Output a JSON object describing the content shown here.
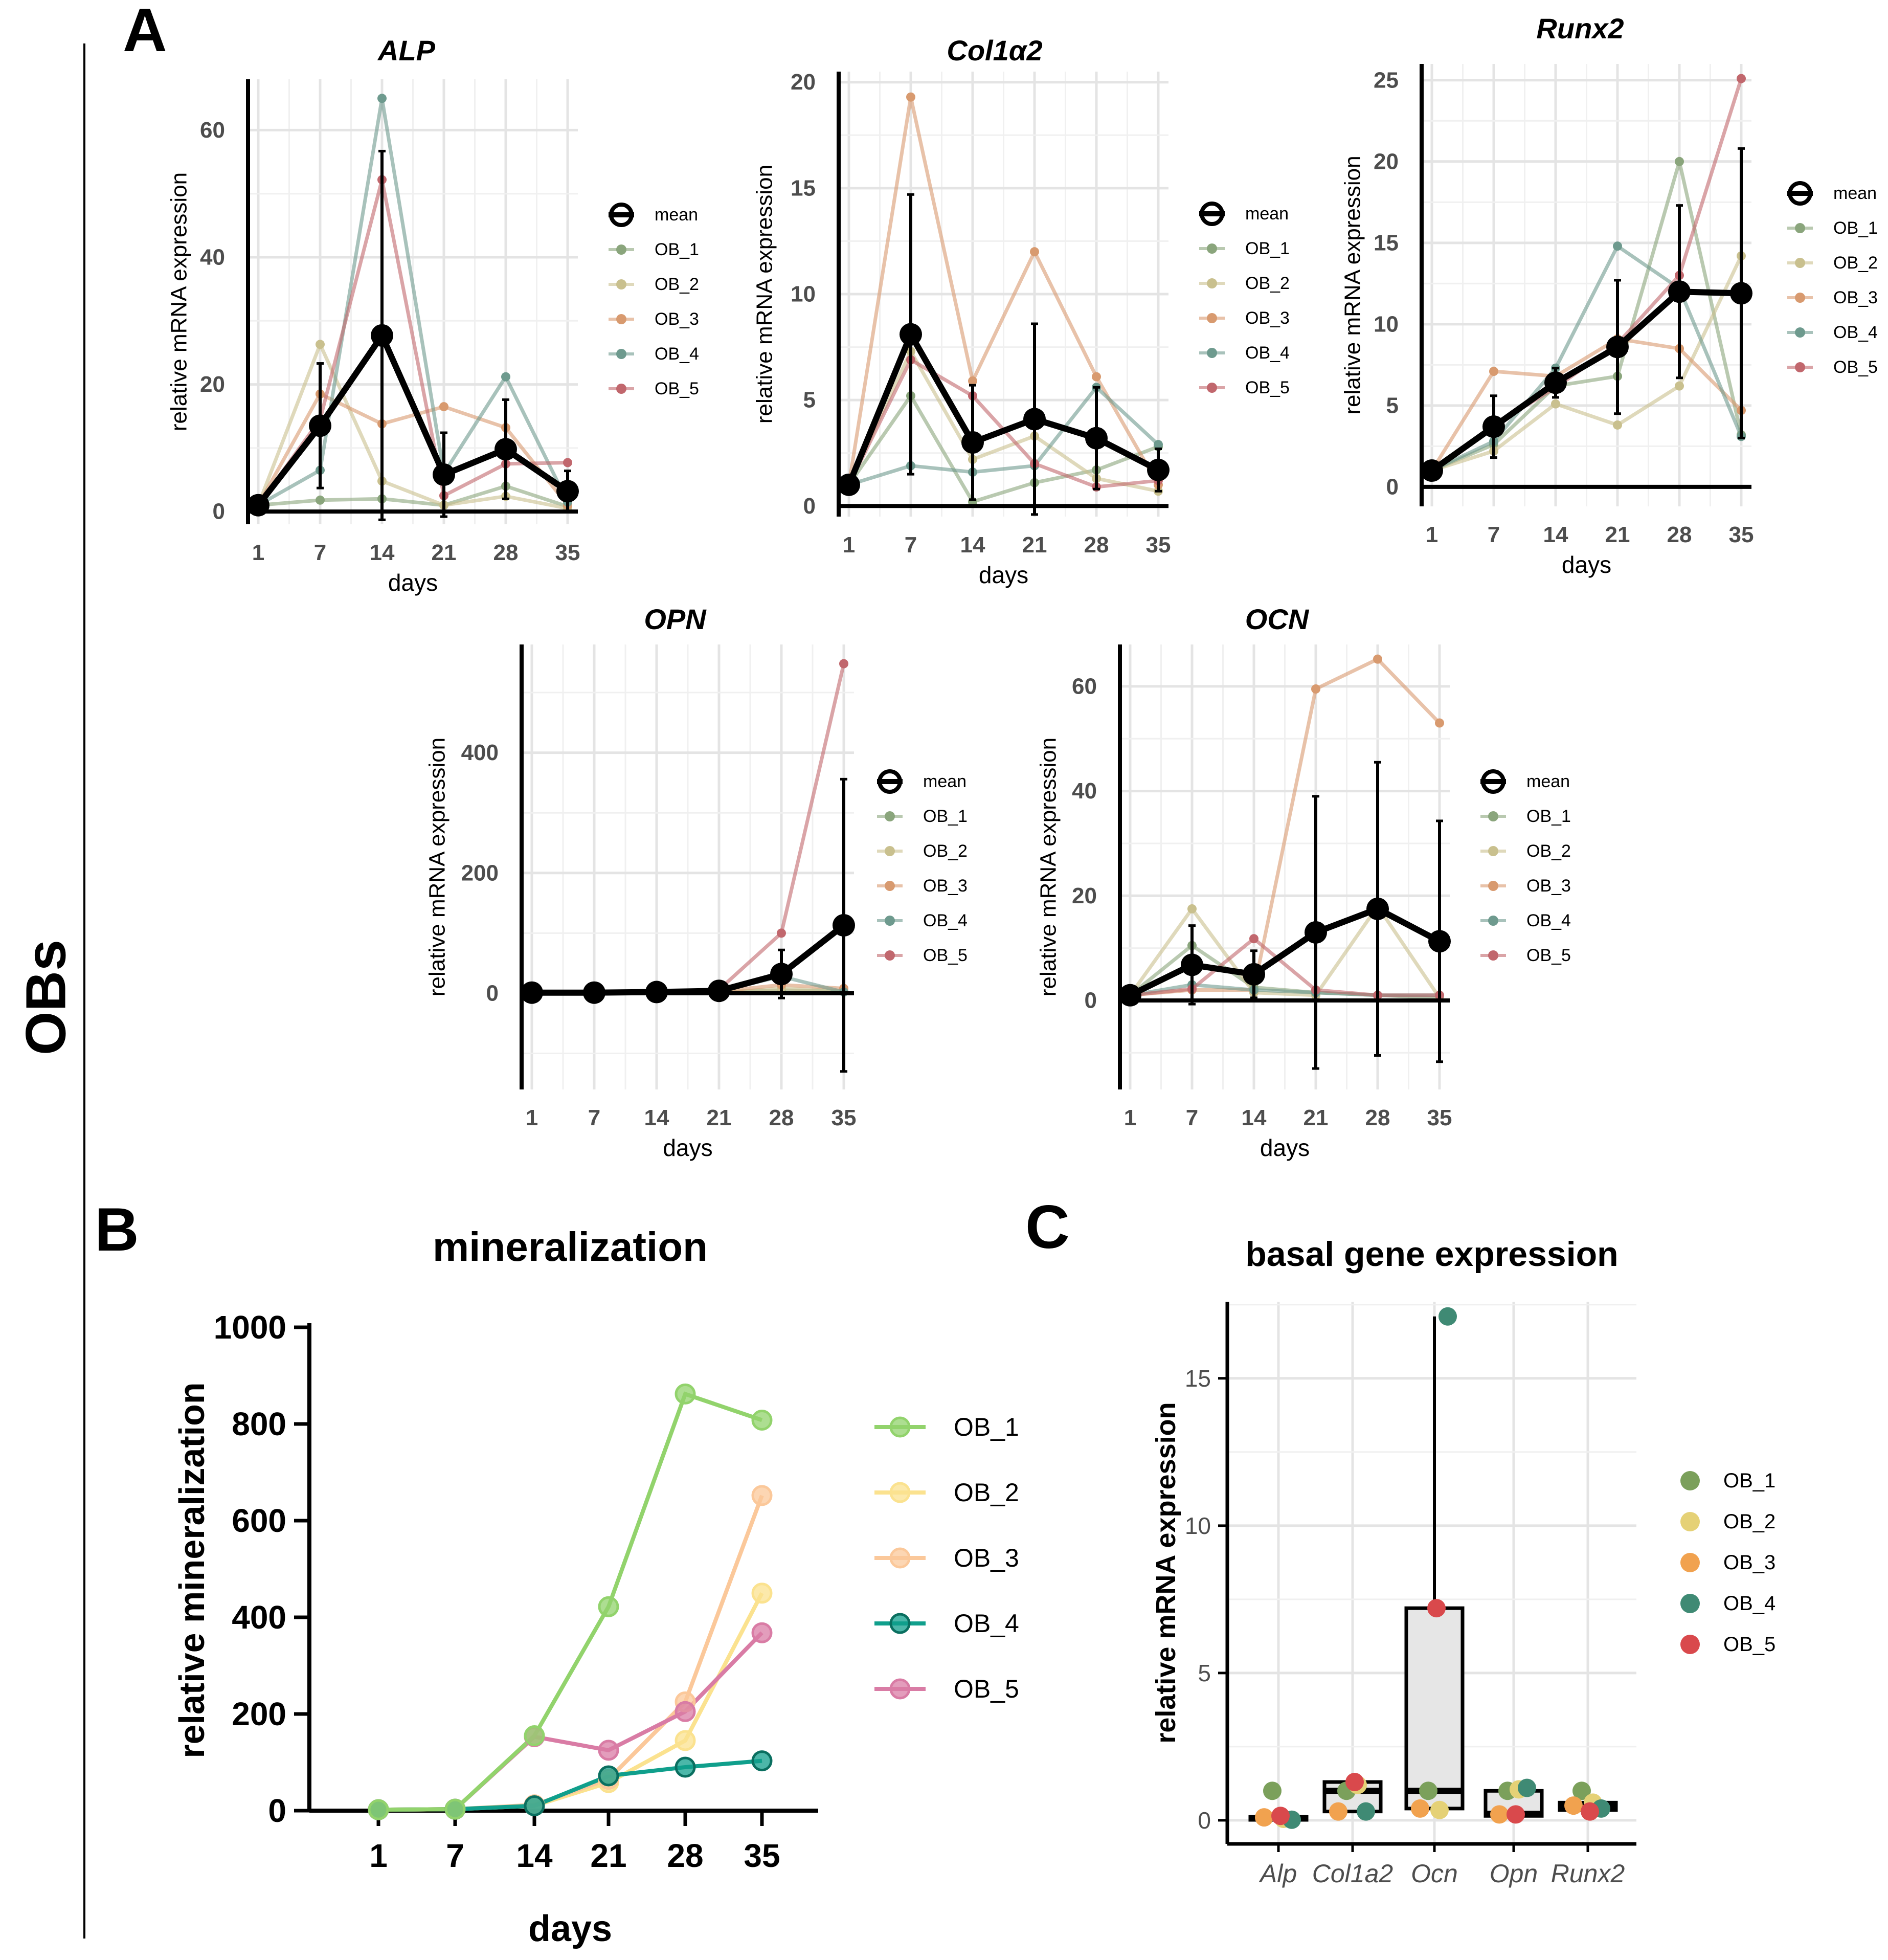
{
  "figure": {
    "side_label": "OBs",
    "panel_labels": {
      "A": "A",
      "B": "B",
      "C": "C"
    },
    "colors": {
      "OB_1": "#8aa57c",
      "OB_2": "#c9c08e",
      "OB_3": "#d89a6f",
      "OB_4": "#6e9a8e",
      "OB_5": "#c1676d",
      "mean": "#000000",
      "B_OB_1": "#92d36c",
      "B_OB_2": "#fbe28f",
      "B_OB_3": "#fbc89a",
      "B_OB_4": "#109f8c",
      "B_OB_5": "#d97ca5",
      "C_OB_1": "#7ba05b",
      "C_OB_2": "#e5d176",
      "C_OB_3": "#f1a24f",
      "C_OB_4": "#3f8a74",
      "C_OB_5": "#d9494c"
    }
  },
  "chart_data": [
    {
      "id": "alp",
      "type": "line",
      "title": "ALP",
      "xlabel": "days",
      "ylabel": "relative mRNA expression",
      "categories": [
        "1",
        "7",
        "14",
        "21",
        "28",
        "35"
      ],
      "ylim": [
        -2,
        68
      ],
      "yticks": [
        0,
        20,
        40,
        60
      ],
      "legend": [
        "mean",
        "OB_1",
        "OB_2",
        "OB_3",
        "OB_4",
        "OB_5"
      ],
      "series": [
        {
          "name": "OB_1",
          "values": [
            1,
            1.8,
            2,
            1,
            4,
            0.8
          ]
        },
        {
          "name": "OB_2",
          "values": [
            1,
            26.3,
            4.8,
            1,
            2.4,
            0.5
          ]
        },
        {
          "name": "OB_3",
          "values": [
            1,
            18.5,
            13.8,
            16.5,
            13.2,
            1
          ]
        },
        {
          "name": "OB_4",
          "values": [
            1,
            6.5,
            65,
            6,
            21.2,
            1.5
          ]
        },
        {
          "name": "OB_5",
          "values": [
            1,
            14.5,
            52.2,
            2.5,
            7.5,
            7.7
          ]
        },
        {
          "name": "mean",
          "values": [
            1,
            13.5,
            27.7,
            5.8,
            9.8,
            3.2
          ],
          "err": [
            0,
            9.8,
            29,
            6.6,
            7.8,
            3.2
          ]
        }
      ]
    },
    {
      "id": "col",
      "type": "line",
      "title": "Col1α2",
      "xlabel": "days",
      "ylabel": "relative mRNA expression",
      "categories": [
        "1",
        "7",
        "14",
        "21",
        "28",
        "35"
      ],
      "ylim": [
        -0.5,
        20.5
      ],
      "yticks": [
        0,
        5,
        10,
        15,
        20
      ],
      "legend": [
        "mean",
        "OB_1",
        "OB_2",
        "OB_3",
        "OB_4",
        "OB_5"
      ],
      "series": [
        {
          "name": "OB_1",
          "values": [
            1,
            5.2,
            0.2,
            1.1,
            1.7,
            2.8
          ]
        },
        {
          "name": "OB_2",
          "values": [
            1,
            7.3,
            2.2,
            3.3,
            1.3,
            0.7
          ]
        },
        {
          "name": "OB_3",
          "values": [
            1,
            19.3,
            5.9,
            12,
            6.1,
            1
          ]
        },
        {
          "name": "OB_4",
          "values": [
            1,
            1.9,
            1.6,
            1.9,
            5.6,
            2.9
          ]
        },
        {
          "name": "OB_5",
          "values": [
            1,
            6.9,
            5.2,
            2,
            0.9,
            1.2
          ]
        },
        {
          "name": "mean",
          "values": [
            1,
            8.1,
            3,
            4.1,
            3.2,
            1.7
          ],
          "err": [
            0,
            6.6,
            2.7,
            4.5,
            2.4,
            1
          ]
        }
      ]
    },
    {
      "id": "runx",
      "type": "line",
      "title": "Runx2",
      "xlabel": "days",
      "ylabel": "relative mRNA expression",
      "categories": [
        "1",
        "7",
        "14",
        "21",
        "28",
        "35"
      ],
      "ylim": [
        -1.2,
        26
      ],
      "yticks": [
        0,
        5,
        10,
        15,
        20,
        25
      ],
      "legend": [
        "mean",
        "OB_1",
        "OB_2",
        "OB_3",
        "OB_4",
        "OB_5"
      ],
      "series": [
        {
          "name": "OB_1",
          "values": [
            1,
            2.6,
            6.2,
            6.8,
            20,
            3.2
          ]
        },
        {
          "name": "OB_2",
          "values": [
            1,
            2.2,
            5.1,
            3.8,
            6.2,
            14.2
          ]
        },
        {
          "name": "OB_3",
          "values": [
            1,
            7.1,
            6.8,
            9.1,
            8.5,
            4.7
          ]
        },
        {
          "name": "OB_4",
          "values": [
            1,
            2.8,
            7.3,
            14.8,
            12.2,
            3.1
          ]
        },
        {
          "name": "OB_5",
          "values": [
            1,
            3.8,
            6.1,
            8.8,
            13,
            25.1
          ]
        },
        {
          "name": "mean",
          "values": [
            1,
            3.7,
            6.4,
            8.6,
            12,
            11.9
          ],
          "err": [
            0,
            1.9,
            0.9,
            4.1,
            5.3,
            8.9
          ]
        }
      ]
    },
    {
      "id": "opn",
      "type": "line",
      "title": "OPN",
      "xlabel": "days",
      "ylabel": "relative mRNA expression",
      "categories": [
        "1",
        "7",
        "14",
        "21",
        "28",
        "35"
      ],
      "ylim": [
        -160,
        580
      ],
      "yticks": [
        0,
        200,
        400
      ],
      "legend": [
        "mean",
        "OB_1",
        "OB_2",
        "OB_3",
        "OB_4",
        "OB_5"
      ],
      "series": [
        {
          "name": "OB_1",
          "values": [
            1,
            1,
            1,
            2,
            5,
            3
          ]
        },
        {
          "name": "OB_2",
          "values": [
            1,
            1,
            1,
            1,
            8,
            4
          ]
        },
        {
          "name": "OB_3",
          "values": [
            1,
            1,
            2,
            3,
            14,
            8
          ]
        },
        {
          "name": "OB_4",
          "values": [
            1,
            1,
            2,
            4,
            28,
            2
          ]
        },
        {
          "name": "OB_5",
          "values": [
            1,
            1,
            3,
            6,
            100,
            548
          ]
        },
        {
          "name": "mean",
          "values": [
            1,
            1,
            2,
            4,
            32,
            113
          ],
          "err": [
            0,
            0,
            1,
            2,
            40,
            243
          ]
        }
      ]
    },
    {
      "id": "ocn",
      "type": "line",
      "title": "OCN",
      "xlabel": "days",
      "ylabel": "relative mRNA expression",
      "categories": [
        "1",
        "7",
        "14",
        "21",
        "28",
        "35"
      ],
      "ylim": [
        -17,
        68
      ],
      "yticks": [
        0,
        20,
        40,
        60
      ],
      "legend": [
        "mean",
        "OB_1",
        "OB_2",
        "OB_3",
        "OB_4",
        "OB_5"
      ],
      "series": [
        {
          "name": "OB_1",
          "values": [
            1,
            10.5,
            2.5,
            1.5,
            1,
            0.5
          ]
        },
        {
          "name": "OB_2",
          "values": [
            1,
            17.5,
            1.5,
            1,
            18,
            0.5
          ]
        },
        {
          "name": "OB_3",
          "values": [
            1,
            2,
            2,
            59.5,
            65.2,
            53
          ]
        },
        {
          "name": "OB_4",
          "values": [
            1,
            3,
            2,
            1.5,
            1,
            1
          ]
        },
        {
          "name": "OB_5",
          "values": [
            1,
            2.2,
            11.8,
            2,
            1,
            1
          ]
        },
        {
          "name": "mean",
          "values": [
            1,
            6.8,
            5,
            13,
            17.5,
            11.3
          ],
          "err": [
            0,
            7.5,
            4.5,
            26,
            28,
            23
          ]
        }
      ]
    },
    {
      "id": "mineral",
      "type": "line",
      "title": "mineralization",
      "xlabel": "days",
      "ylabel": "relative mineralization",
      "categories": [
        "1",
        "7",
        "14",
        "21",
        "28",
        "35"
      ],
      "ylim": [
        0,
        1000
      ],
      "yticks": [
        0,
        200,
        400,
        600,
        800,
        1000
      ],
      "legend": [
        "OB_1",
        "OB_2",
        "OB_3",
        "OB_4",
        "OB_5"
      ],
      "series": [
        {
          "name": "OB_1",
          "values": [
            2,
            3,
            155,
            422,
            862,
            808
          ]
        },
        {
          "name": "OB_2",
          "values": [
            2,
            3,
            10,
            58,
            145,
            450
          ]
        },
        {
          "name": "OB_3",
          "values": [
            2,
            3,
            12,
            65,
            225,
            652
          ]
        },
        {
          "name": "OB_4",
          "values": [
            2,
            3,
            10,
            72,
            90,
            103
          ]
        },
        {
          "name": "OB_5",
          "values": [
            2,
            3,
            153,
            125,
            205,
            368
          ]
        }
      ]
    },
    {
      "id": "basal",
      "type": "box",
      "title": "basal gene expression",
      "xlabel": "",
      "ylabel": "relative mRNA expression",
      "categories": [
        "Alp",
        "Col1a2",
        "Ocn",
        "Opn",
        "Runx2"
      ],
      "ylim": [
        -0.8,
        17.6
      ],
      "yticks": [
        0,
        5,
        10,
        15
      ],
      "legend": [
        "OB_1",
        "OB_2",
        "OB_3",
        "OB_4",
        "OB_5"
      ],
      "boxes": [
        {
          "q1": 0.02,
          "median": 0.08,
          "q3": 0.12,
          "whisker_low": 0.02,
          "whisker_high": 0.12
        },
        {
          "q1": 0.3,
          "median": 1.0,
          "q3": 1.3,
          "whisker_low": 0.3,
          "whisker_high": 1.3
        },
        {
          "q1": 0.4,
          "median": 1.0,
          "q3": 7.2,
          "whisker_low": 0.4,
          "whisker_high": 17.1
        },
        {
          "q1": 0.15,
          "median": 0.22,
          "q3": 1.0,
          "whisker_low": 0.15,
          "whisker_high": 1.05
        },
        {
          "q1": 0.35,
          "median": 0.48,
          "q3": 0.6,
          "whisker_low": 0.3,
          "whisker_high": 0.65
        }
      ],
      "points": [
        {
          "name": "OB_1",
          "values": [
            1.0,
            1.0,
            1.0,
            1.0,
            1.0
          ]
        },
        {
          "name": "OB_2",
          "values": [
            0.05,
            1.2,
            0.35,
            1.05,
            0.6
          ]
        },
        {
          "name": "OB_3",
          "values": [
            0.1,
            0.3,
            0.4,
            0.2,
            0.5
          ]
        },
        {
          "name": "OB_4",
          "values": [
            0.02,
            0.3,
            17.1,
            1.1,
            0.4
          ]
        },
        {
          "name": "OB_5",
          "values": [
            0.15,
            1.3,
            7.2,
            0.2,
            0.3
          ]
        }
      ]
    }
  ]
}
